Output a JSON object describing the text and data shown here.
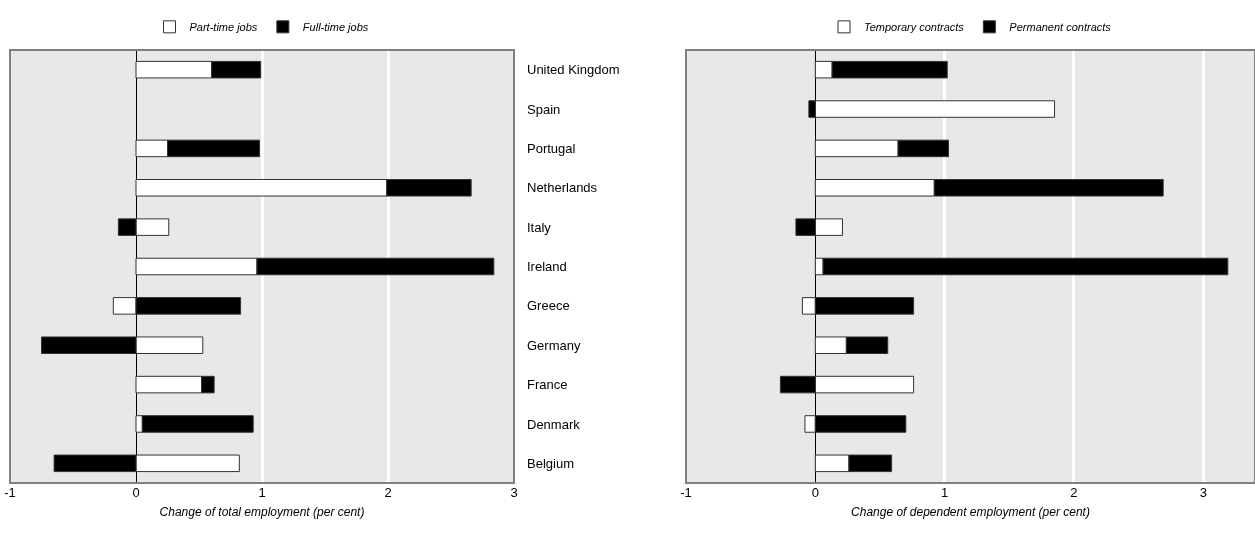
{
  "chart_data": [
    {
      "type": "bar",
      "orientation": "horizontal",
      "stacked": true,
      "xlabel": "Change of total employment (per cent)",
      "categories": [
        "United Kingdom",
        "Spain",
        "Portugal",
        "Netherlands",
        "Italy",
        "Ireland",
        "Greece",
        "Germany",
        "France",
        "Denmark",
        "Belgium"
      ],
      "series": [
        {
          "name": "Part-time jobs",
          "color": "#ffffff",
          "values": [
            0.6,
            null,
            0.25,
            1.99,
            0.26,
            0.96,
            -0.18,
            0.53,
            0.52,
            0.05,
            0.82
          ]
        },
        {
          "name": "Full-time jobs",
          "color": "#000000",
          "values": [
            0.39,
            null,
            0.73,
            0.67,
            -0.14,
            1.88,
            0.83,
            -0.75,
            0.1,
            0.88,
            -0.65
          ]
        }
      ],
      "xlim": [
        -1,
        3
      ],
      "xticks": [
        -1,
        0,
        1,
        2,
        3
      ],
      "grid": "x",
      "legend": "top"
    },
    {
      "type": "bar",
      "orientation": "horizontal",
      "stacked": true,
      "xlabel": "Change of dependent employment (per cent)",
      "categories": [
        null,
        null,
        null,
        null,
        null,
        null,
        null,
        null,
        null,
        null,
        null
      ],
      "series": [
        {
          "name": "Temporary contracts",
          "color": "#ffffff",
          "values": [
            0.13,
            1.85,
            0.64,
            0.92,
            0.21,
            0.06,
            -0.1,
            0.24,
            0.76,
            -0.08,
            0.26
          ]
        },
        {
          "name": "Permanent contracts",
          "color": "#000000",
          "values": [
            0.89,
            -0.05,
            0.39,
            1.77,
            -0.15,
            3.13,
            0.76,
            0.32,
            -0.27,
            0.7,
            0.33
          ]
        }
      ],
      "xlim": [
        -1,
        3.4
      ],
      "xticks": [
        -1,
        0,
        1,
        2,
        3
      ],
      "grid": "x",
      "legend": "top",
      "tick_labels": "x"
    }
  ]
}
